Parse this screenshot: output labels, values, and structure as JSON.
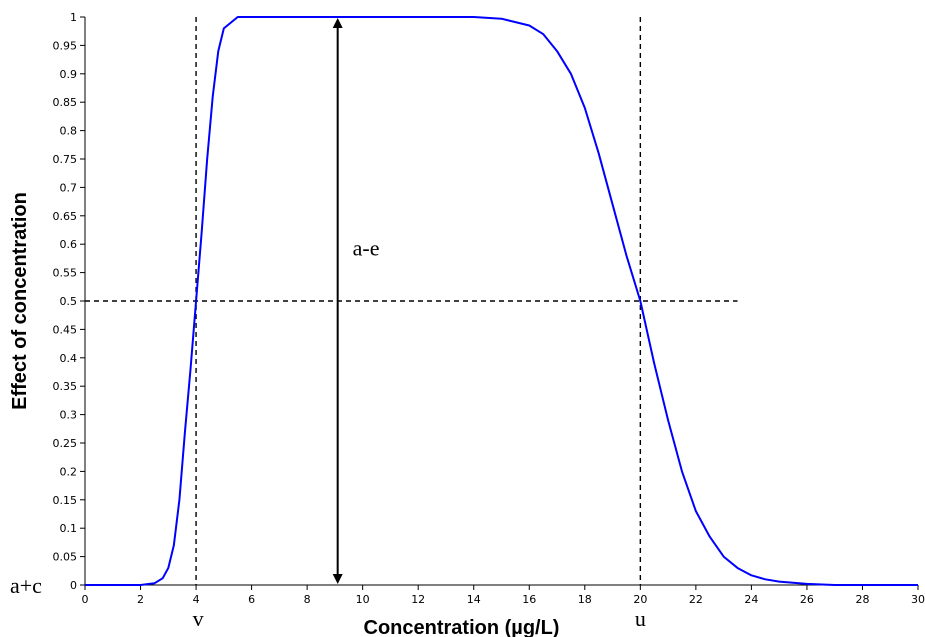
{
  "chart_data": {
    "type": "line",
    "title": "",
    "xlabel": "Concentration (µg/L)",
    "ylabel": "Effect of concentration",
    "xlim": [
      0,
      30
    ],
    "ylim": [
      0,
      1
    ],
    "x_ticks": [
      0,
      2,
      4,
      6,
      8,
      10,
      12,
      14,
      16,
      18,
      20,
      22,
      24,
      26,
      28,
      30
    ],
    "y_ticks": [
      0,
      0.05,
      0.1,
      0.15,
      0.2,
      0.25,
      0.3,
      0.35,
      0.4,
      0.45,
      0.5,
      0.55,
      0.6,
      0.65,
      0.7,
      0.75,
      0.8,
      0.85,
      0.9,
      0.95,
      1
    ],
    "grid": false,
    "series": [
      {
        "color": "#0000ff",
        "x": [
          0,
          2,
          2.5,
          2.8,
          3,
          3.2,
          3.4,
          3.6,
          3.8,
          4,
          4.2,
          4.4,
          4.6,
          4.8,
          5,
          5.5,
          6,
          8,
          10,
          12,
          14,
          15,
          16,
          16.5,
          17,
          17.5,
          18,
          18.5,
          19,
          19.5,
          20,
          20.5,
          21,
          21.5,
          22,
          22.5,
          23,
          23.5,
          24,
          24.5,
          25,
          25.5,
          26,
          27,
          28,
          30
        ],
        "y": [
          0,
          0,
          0.003,
          0.012,
          0.03,
          0.07,
          0.15,
          0.27,
          0.38,
          0.5,
          0.62,
          0.75,
          0.86,
          0.94,
          0.98,
          1,
          1,
          1,
          1,
          1,
          1,
          0.997,
          0.985,
          0.97,
          0.94,
          0.9,
          0.84,
          0.76,
          0.67,
          0.58,
          0.5,
          0.39,
          0.29,
          0.2,
          0.13,
          0.085,
          0.05,
          0.03,
          0.017,
          0.01,
          0.006,
          0.004,
          0.002,
          0,
          0,
          0
        ]
      }
    ],
    "reference_lines": {
      "vertical_x": [
        4,
        20
      ],
      "horizontal_y": 0.5,
      "style": "dashed"
    },
    "arrow": {
      "x": 9.1,
      "y_from": 0,
      "y_to": 1,
      "label": "a-e"
    },
    "annotations": {
      "v_label": "v",
      "v_x": 4,
      "u_label": "u",
      "u_x": 20,
      "baseline_label": "a+c"
    }
  }
}
